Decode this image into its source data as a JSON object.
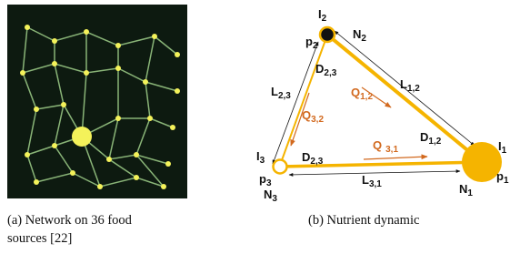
{
  "figure_a": {
    "caption": [
      "(a) Network on 36 food",
      "sources [22]"
    ]
  },
  "figure_b": {
    "caption": "(b) Nutrient dynamic",
    "labels": [
      {
        "main": "I",
        "sub": "2"
      },
      {
        "main": "p",
        "sub": "2"
      },
      {
        "main": "N",
        "sub": "2"
      },
      {
        "main": "D",
        "sub": "2,3"
      },
      {
        "main": "L",
        "sub": "2,3"
      },
      {
        "main": "Q",
        "sub": "1,2"
      },
      {
        "main": "L",
        "sub": "1,2"
      },
      {
        "main": "Q",
        "sub": "3,2"
      },
      {
        "main": "D",
        "sub": "1,2"
      },
      {
        "main": "I",
        "sub": "3"
      },
      {
        "main": "D",
        "sub": "2,3"
      },
      {
        "main": "Q",
        "sub": "3,1"
      },
      {
        "main": "I",
        "sub": "1"
      },
      {
        "main": "p",
        "sub": "3"
      },
      {
        "main": "N",
        "sub": "3"
      },
      {
        "main": "L",
        "sub": "3,1"
      },
      {
        "main": "N",
        "sub": "1"
      },
      {
        "main": "p",
        "sub": "1"
      }
    ]
  }
}
